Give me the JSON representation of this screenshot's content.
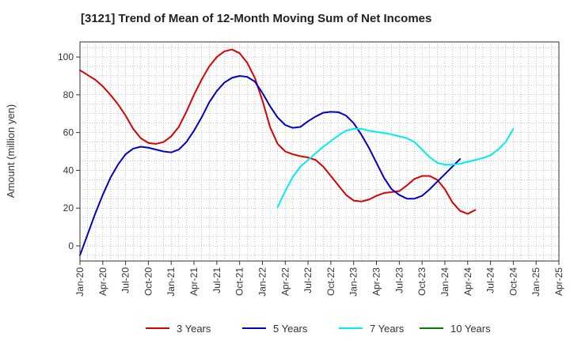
{
  "chart_data": {
    "type": "line",
    "title": "[3121]  Trend of Mean of 12-Month Moving Sum of Net Incomes",
    "ylabel": "Amount (million yen)",
    "xlabel": "",
    "ylim": [
      -8,
      108
    ],
    "yticks": [
      0,
      20,
      40,
      60,
      80,
      100
    ],
    "x_start": "2020-01",
    "x_end": "2025-04",
    "xtick_labels": [
      "Jan-20",
      "Apr-20",
      "Jul-20",
      "Oct-20",
      "Jan-21",
      "Apr-21",
      "Jul-21",
      "Oct-21",
      "Jan-22",
      "Apr-22",
      "Jul-22",
      "Oct-22",
      "Jan-23",
      "Apr-23",
      "Jul-23",
      "Oct-23",
      "Jan-24",
      "Apr-24",
      "Jul-24",
      "Oct-24",
      "Jan-25",
      "Apr-25"
    ],
    "grid": true,
    "legend_position": "bottom",
    "series": [
      {
        "name": "3 Years",
        "color": "#dd0000",
        "start": "2020-01",
        "values": [
          93,
          90.5,
          88,
          84.5,
          80,
          75,
          69,
          62,
          57,
          54.5,
          54,
          55,
          58,
          63,
          71,
          80,
          88,
          95,
          100,
          103,
          104,
          102,
          97,
          89,
          77,
          63,
          54,
          50,
          48.5,
          47.5,
          46.8,
          45.5,
          42,
          37,
          32,
          27,
          24,
          23.5,
          24.5,
          26.5,
          28,
          28.5,
          29,
          32,
          35.5,
          37,
          37,
          35,
          30,
          23,
          18.5,
          17,
          19
        ]
      },
      {
        "name": "5 Years",
        "color": "#0000cc",
        "start": "2020-01",
        "values": [
          -5,
          6,
          17,
          27,
          36,
          43,
          48.5,
          51.5,
          52.5,
          52,
          51,
          50,
          49.5,
          51,
          55,
          61,
          68,
          76,
          82,
          86.5,
          89,
          90,
          89.5,
          87,
          81,
          74,
          68,
          64,
          62.5,
          63,
          66,
          68.5,
          70.5,
          71,
          70.8,
          69,
          65,
          59,
          52,
          44,
          36,
          30,
          27,
          25,
          25,
          26.5,
          30,
          34,
          38,
          42,
          46
        ]
      },
      {
        "name": "7 Years",
        "color": "#00eeee",
        "start": "2022-03",
        "values": [
          20.5,
          29,
          36.5,
          42,
          45.5,
          49,
          52.5,
          55.5,
          58.5,
          61,
          62,
          62,
          61,
          60.3,
          59.8,
          59,
          58,
          57,
          55,
          51,
          47,
          44,
          43,
          43,
          43.5,
          44.5,
          45.5,
          46.5,
          48,
          51,
          55,
          62
        ]
      },
      {
        "name": "10 Years",
        "color": "#008000",
        "start": "2020-01",
        "values": []
      }
    ]
  }
}
